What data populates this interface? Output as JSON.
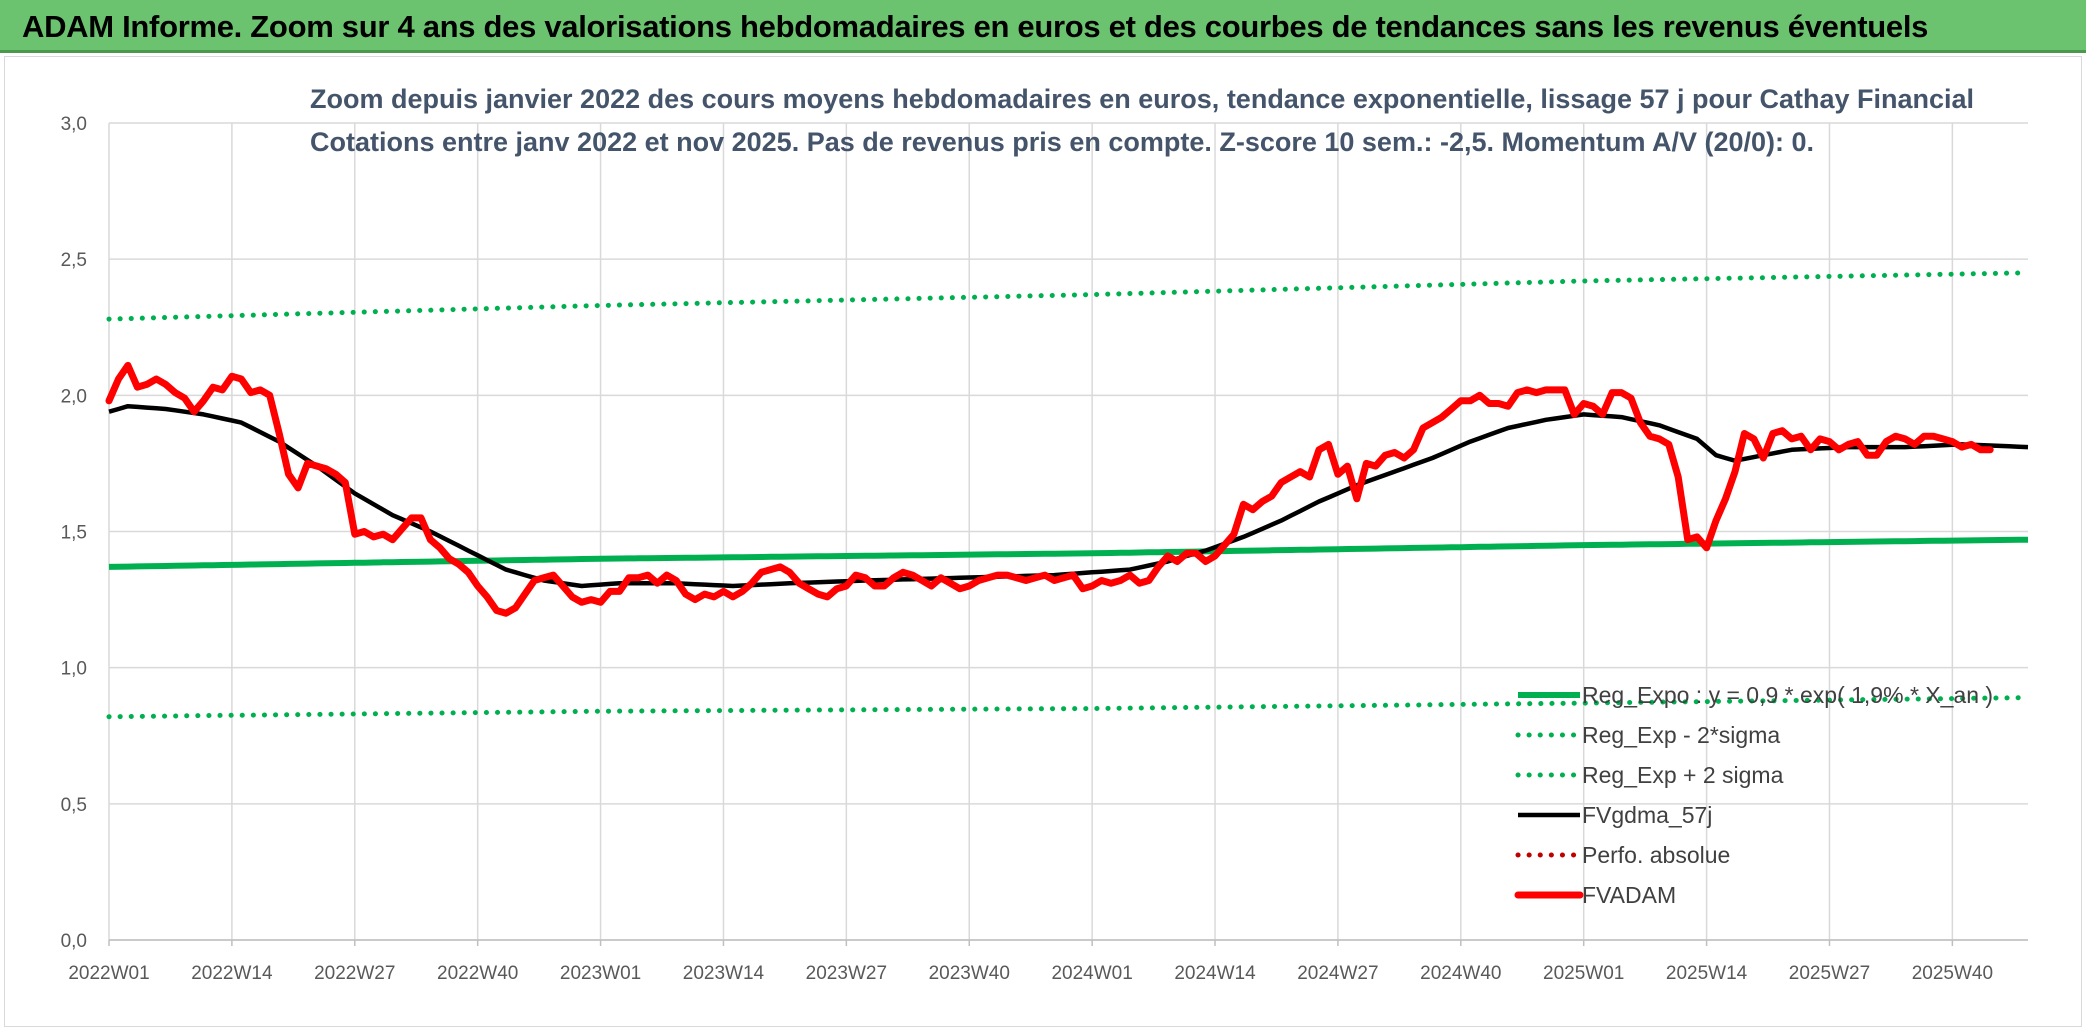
{
  "banner": {
    "title": "ADAM Informe. Zoom sur 4 ans des valorisations hebdomadaires en euros et des courbes de tendances sans les revenus éventuels"
  },
  "chart_data": {
    "type": "line",
    "title": "Zoom depuis janvier 2022 des cours moyens hebdomadaires en euros, tendance exponentielle, lissage 57 j pour Cathay Financial",
    "subtitle": "Cotations entre janv 2022 et nov 2025. Pas de revenus pris en compte. Z-score 10 sem.: -2,5. Momentum A/V (20/0): 0.",
    "xlabel": "",
    "ylabel": "",
    "ylim": [
      0,
      3
    ],
    "yticks": [
      0,
      0.5,
      1,
      1.5,
      2,
      2.5,
      3
    ],
    "ytick_labels": [
      "0,0",
      "0,5",
      "1,0",
      "1,5",
      "2,0",
      "2,5",
      "3,0"
    ],
    "x_count": 204,
    "xtick_positions": [
      0,
      13,
      26,
      39,
      52,
      65,
      78,
      91,
      104,
      117,
      130,
      143,
      156,
      169,
      182,
      195
    ],
    "xtick_labels": [
      "2022W01",
      "2022W14",
      "2022W27",
      "2022W40",
      "2023W01",
      "2023W14",
      "2023W27",
      "2023W40",
      "2024W01",
      "2024W14",
      "2024W27",
      "2024W40",
      "2025W01",
      "2025W14",
      "2025W27",
      "2025W40"
    ],
    "grid": true,
    "legend_position": "bottom-right",
    "colors": {
      "green": "#00b050",
      "black": "#000000",
      "red": "#ff0000",
      "dark_red": "#c00000",
      "grid": "#d9d9d9",
      "title": "#44546a"
    },
    "series": [
      {
        "name": "Reg_Expo : y = 0,9 * exp( 1,9% * X_an )",
        "style": "solid",
        "color": "#00b050",
        "anchors": [
          [
            0,
            1.37
          ],
          [
            52,
            1.4
          ],
          [
            104,
            1.42
          ],
          [
            156,
            1.45
          ],
          [
            203,
            1.47
          ]
        ]
      },
      {
        "name": "Reg_Exp - 2*sigma",
        "style": "dotted",
        "color": "#00b050",
        "anchors": [
          [
            0,
            0.82
          ],
          [
            52,
            0.84
          ],
          [
            104,
            0.85
          ],
          [
            156,
            0.87
          ],
          [
            203,
            0.89
          ]
        ]
      },
      {
        "name": "Reg_Exp + 2 sigma",
        "style": "dotted",
        "color": "#00b050",
        "anchors": [
          [
            0,
            2.28
          ],
          [
            52,
            2.33
          ],
          [
            104,
            2.37
          ],
          [
            156,
            2.42
          ],
          [
            203,
            2.45
          ]
        ]
      },
      {
        "name": "FVgdma_57j",
        "style": "solid",
        "color": "#000000",
        "anchors": [
          [
            0,
            1.94
          ],
          [
            2,
            1.96
          ],
          [
            6,
            1.95
          ],
          [
            10,
            1.93
          ],
          [
            14,
            1.9
          ],
          [
            18,
            1.83
          ],
          [
            22,
            1.74
          ],
          [
            26,
            1.64
          ],
          [
            30,
            1.56
          ],
          [
            34,
            1.5
          ],
          [
            38,
            1.43
          ],
          [
            42,
            1.36
          ],
          [
            46,
            1.32
          ],
          [
            50,
            1.3
          ],
          [
            54,
            1.31
          ],
          [
            60,
            1.31
          ],
          [
            66,
            1.3
          ],
          [
            72,
            1.31
          ],
          [
            80,
            1.32
          ],
          [
            90,
            1.33
          ],
          [
            100,
            1.34
          ],
          [
            108,
            1.36
          ],
          [
            112,
            1.39
          ],
          [
            116,
            1.43
          ],
          [
            120,
            1.48
          ],
          [
            124,
            1.54
          ],
          [
            128,
            1.61
          ],
          [
            132,
            1.67
          ],
          [
            136,
            1.72
          ],
          [
            140,
            1.77
          ],
          [
            144,
            1.83
          ],
          [
            148,
            1.88
          ],
          [
            152,
            1.91
          ],
          [
            156,
            1.93
          ],
          [
            160,
            1.92
          ],
          [
            164,
            1.89
          ],
          [
            168,
            1.84
          ],
          [
            170,
            1.78
          ],
          [
            172,
            1.76
          ],
          [
            175,
            1.78
          ],
          [
            178,
            1.8
          ],
          [
            184,
            1.81
          ],
          [
            190,
            1.81
          ],
          [
            196,
            1.82
          ],
          [
            203,
            1.81
          ]
        ]
      },
      {
        "name": "Perfo. absolue",
        "style": "dotted",
        "color": "#c00000",
        "anchors": []
      },
      {
        "name": "FVADAM",
        "style": "solid-thick",
        "color": "#ff0000",
        "anchors": [
          [
            0,
            1.98
          ],
          [
            1,
            2.06
          ],
          [
            2,
            2.11
          ],
          [
            3,
            2.03
          ],
          [
            4,
            2.04
          ],
          [
            5,
            2.06
          ],
          [
            6,
            2.04
          ],
          [
            7,
            2.01
          ],
          [
            8,
            1.99
          ],
          [
            9,
            1.94
          ],
          [
            10,
            1.98
          ],
          [
            11,
            2.03
          ],
          [
            12,
            2.02
          ],
          [
            13,
            2.07
          ],
          [
            14,
            2.06
          ],
          [
            15,
            2.01
          ],
          [
            16,
            2.02
          ],
          [
            17,
            2.0
          ],
          [
            18,
            1.86
          ],
          [
            19,
            1.71
          ],
          [
            20,
            1.66
          ],
          [
            21,
            1.75
          ],
          [
            22,
            1.74
          ],
          [
            23,
            1.73
          ],
          [
            24,
            1.71
          ],
          [
            25,
            1.68
          ],
          [
            26,
            1.49
          ],
          [
            27,
            1.5
          ],
          [
            28,
            1.48
          ],
          [
            29,
            1.49
          ],
          [
            30,
            1.47
          ],
          [
            31,
            1.51
          ],
          [
            32,
            1.55
          ],
          [
            33,
            1.55
          ],
          [
            34,
            1.47
          ],
          [
            35,
            1.44
          ],
          [
            36,
            1.4
          ],
          [
            37,
            1.38
          ],
          [
            38,
            1.35
          ],
          [
            39,
            1.3
          ],
          [
            40,
            1.26
          ],
          [
            41,
            1.21
          ],
          [
            42,
            1.2
          ],
          [
            43,
            1.22
          ],
          [
            44,
            1.27
          ],
          [
            45,
            1.32
          ],
          [
            46,
            1.33
          ],
          [
            47,
            1.34
          ],
          [
            48,
            1.3
          ],
          [
            49,
            1.26
          ],
          [
            50,
            1.24
          ],
          [
            51,
            1.25
          ],
          [
            52,
            1.24
          ],
          [
            53,
            1.28
          ],
          [
            54,
            1.28
          ],
          [
            55,
            1.33
          ],
          [
            56,
            1.33
          ],
          [
            57,
            1.34
          ],
          [
            58,
            1.31
          ],
          [
            59,
            1.34
          ],
          [
            60,
            1.32
          ],
          [
            61,
            1.27
          ],
          [
            62,
            1.25
          ],
          [
            63,
            1.27
          ],
          [
            64,
            1.26
          ],
          [
            65,
            1.28
          ],
          [
            66,
            1.26
          ],
          [
            67,
            1.28
          ],
          [
            68,
            1.31
          ],
          [
            69,
            1.35
          ],
          [
            70,
            1.36
          ],
          [
            71,
            1.37
          ],
          [
            72,
            1.35
          ],
          [
            73,
            1.31
          ],
          [
            74,
            1.29
          ],
          [
            75,
            1.27
          ],
          [
            76,
            1.26
          ],
          [
            77,
            1.29
          ],
          [
            78,
            1.3
          ],
          [
            79,
            1.34
          ],
          [
            80,
            1.33
          ],
          [
            81,
            1.3
          ],
          [
            82,
            1.3
          ],
          [
            83,
            1.33
          ],
          [
            84,
            1.35
          ],
          [
            85,
            1.34
          ],
          [
            86,
            1.32
          ],
          [
            87,
            1.3
          ],
          [
            88,
            1.33
          ],
          [
            89,
            1.31
          ],
          [
            90,
            1.29
          ],
          [
            91,
            1.3
          ],
          [
            92,
            1.32
          ],
          [
            93,
            1.33
          ],
          [
            94,
            1.34
          ],
          [
            95,
            1.34
          ],
          [
            96,
            1.33
          ],
          [
            97,
            1.32
          ],
          [
            98,
            1.33
          ],
          [
            99,
            1.34
          ],
          [
            100,
            1.32
          ],
          [
            101,
            1.33
          ],
          [
            102,
            1.34
          ],
          [
            103,
            1.29
          ],
          [
            104,
            1.3
          ],
          [
            105,
            1.32
          ],
          [
            106,
            1.31
          ],
          [
            107,
            1.32
          ],
          [
            108,
            1.34
          ],
          [
            109,
            1.31
          ],
          [
            110,
            1.32
          ],
          [
            111,
            1.37
          ],
          [
            112,
            1.41
          ],
          [
            113,
            1.39
          ],
          [
            114,
            1.42
          ],
          [
            115,
            1.42
          ],
          [
            116,
            1.39
          ],
          [
            117,
            1.41
          ],
          [
            118,
            1.45
          ],
          [
            119,
            1.49
          ],
          [
            120,
            1.6
          ],
          [
            121,
            1.58
          ],
          [
            122,
            1.61
          ],
          [
            123,
            1.63
          ],
          [
            124,
            1.68
          ],
          [
            125,
            1.7
          ],
          [
            126,
            1.72
          ],
          [
            127,
            1.7
          ],
          [
            128,
            1.8
          ],
          [
            129,
            1.82
          ],
          [
            130,
            1.71
          ],
          [
            131,
            1.74
          ],
          [
            132,
            1.62
          ],
          [
            133,
            1.75
          ],
          [
            134,
            1.74
          ],
          [
            135,
            1.78
          ],
          [
            136,
            1.79
          ],
          [
            137,
            1.77
          ],
          [
            138,
            1.8
          ],
          [
            139,
            1.88
          ],
          [
            140,
            1.9
          ],
          [
            141,
            1.92
          ],
          [
            142,
            1.95
          ],
          [
            143,
            1.98
          ],
          [
            144,
            1.98
          ],
          [
            145,
            2.0
          ],
          [
            146,
            1.97
          ],
          [
            147,
            1.97
          ],
          [
            148,
            1.96
          ],
          [
            149,
            2.01
          ],
          [
            150,
            2.02
          ],
          [
            151,
            2.01
          ],
          [
            152,
            2.02
          ],
          [
            153,
            2.02
          ],
          [
            154,
            2.02
          ],
          [
            155,
            1.93
          ],
          [
            156,
            1.97
          ],
          [
            157,
            1.96
          ],
          [
            158,
            1.93
          ],
          [
            159,
            2.01
          ],
          [
            160,
            2.01
          ],
          [
            161,
            1.99
          ],
          [
            162,
            1.9
          ],
          [
            163,
            1.85
          ],
          [
            164,
            1.84
          ],
          [
            165,
            1.82
          ],
          [
            166,
            1.7
          ],
          [
            167,
            1.47
          ],
          [
            168,
            1.48
          ],
          [
            169,
            1.44
          ],
          [
            170,
            1.54
          ],
          [
            171,
            1.62
          ],
          [
            172,
            1.72
          ],
          [
            173,
            1.86
          ],
          [
            174,
            1.84
          ],
          [
            175,
            1.77
          ],
          [
            176,
            1.86
          ],
          [
            177,
            1.87
          ],
          [
            178,
            1.84
          ],
          [
            179,
            1.85
          ],
          [
            180,
            1.8
          ],
          [
            181,
            1.84
          ],
          [
            182,
            1.83
          ],
          [
            183,
            1.8
          ],
          [
            184,
            1.82
          ],
          [
            185,
            1.83
          ],
          [
            186,
            1.78
          ],
          [
            187,
            1.78
          ],
          [
            188,
            1.83
          ],
          [
            189,
            1.85
          ],
          [
            190,
            1.84
          ],
          [
            191,
            1.82
          ],
          [
            192,
            1.85
          ],
          [
            193,
            1.85
          ],
          [
            194,
            1.84
          ],
          [
            195,
            1.83
          ],
          [
            196,
            1.81
          ],
          [
            197,
            1.82
          ],
          [
            198,
            1.8
          ],
          [
            199,
            1.8
          ]
        ]
      }
    ]
  }
}
